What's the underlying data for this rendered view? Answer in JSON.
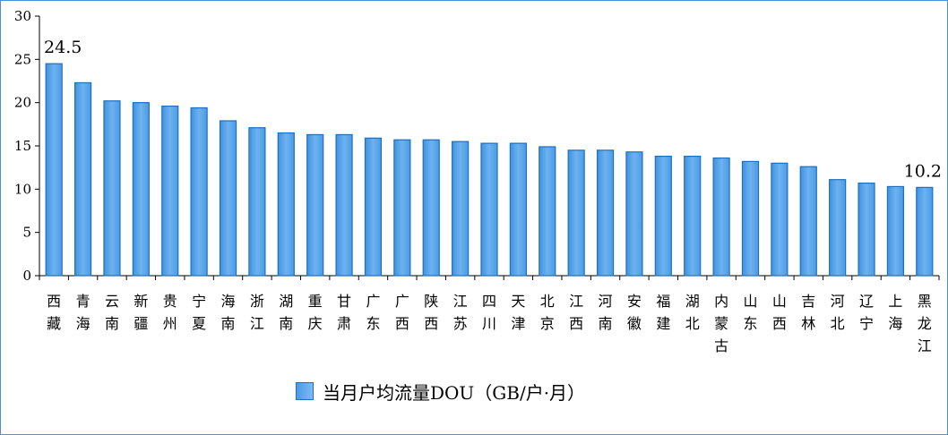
{
  "chart_data": {
    "type": "bar",
    "categories": [
      "西藏",
      "青海",
      "云南",
      "新疆",
      "贵州",
      "宁夏",
      "海南",
      "浙江",
      "湖南",
      "重庆",
      "甘肃",
      "广东",
      "广西",
      "陕西",
      "江苏",
      "四川",
      "天津",
      "北京",
      "江西",
      "河南",
      "安徽",
      "福建",
      "湖北",
      "内蒙古",
      "山东",
      "山西",
      "吉林",
      "河北",
      "辽宁",
      "上海",
      "黑龙江"
    ],
    "series": [
      {
        "name": "当月户均流量DOU（GB/户·月）",
        "values": [
          24.5,
          22.3,
          20.2,
          20.0,
          19.6,
          19.4,
          17.9,
          17.1,
          16.5,
          16.3,
          16.3,
          15.9,
          15.7,
          15.7,
          15.5,
          15.3,
          15.3,
          14.9,
          14.5,
          14.5,
          14.3,
          13.8,
          13.8,
          13.6,
          13.2,
          13.0,
          12.6,
          11.1,
          10.7,
          10.3,
          10.2
        ]
      }
    ],
    "data_labels": [
      {
        "category": "西藏",
        "text": "24.5"
      },
      {
        "category": "黑龙江",
        "text": "10.2"
      }
    ],
    "y_ticks": [
      "0",
      "5",
      "10",
      "15",
      "20",
      "25",
      "30"
    ],
    "ylim": [
      0,
      30
    ],
    "grid": false,
    "legend_position": "bottom",
    "bar_color": "#5aa5ea",
    "bar_edge_color": "#1f6fbf"
  },
  "legend": {
    "label": "当月户均流量DOU（GB/户·月）"
  }
}
